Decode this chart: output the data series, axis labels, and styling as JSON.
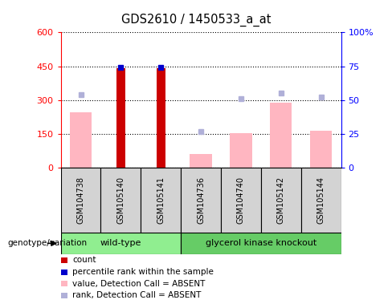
{
  "title": "GDS2610 / 1450533_a_at",
  "samples": [
    "GSM104738",
    "GSM105140",
    "GSM105141",
    "GSM104736",
    "GSM104740",
    "GSM105142",
    "GSM105144"
  ],
  "count_values": [
    null,
    440,
    440,
    null,
    null,
    null,
    null
  ],
  "count_color": "#cc0000",
  "percentile_rank_values": [
    null,
    74,
    74,
    null,
    null,
    null,
    null
  ],
  "percentile_rank_color": "#0000cc",
  "absent_value_bars": [
    245,
    null,
    null,
    60,
    155,
    290,
    165
  ],
  "absent_value_color": "#ffb6c1",
  "absent_rank_pct": [
    54,
    null,
    null,
    27,
    51,
    55,
    52
  ],
  "absent_rank_color": "#b0b0d8",
  "ylim_left": [
    0,
    600
  ],
  "ylim_right": [
    0,
    100
  ],
  "yticks_left": [
    0,
    150,
    300,
    450,
    600
  ],
  "yticks_right": [
    0,
    25,
    50,
    75,
    100
  ],
  "plot_facecolor": "#ffffff",
  "axes_facecolor": "#ffffff",
  "legend_items": [
    {
      "label": "count",
      "color": "#cc0000"
    },
    {
      "label": "percentile rank within the sample",
      "color": "#0000cc"
    },
    {
      "label": "value, Detection Call = ABSENT",
      "color": "#ffb6c1"
    },
    {
      "label": "rank, Detection Call = ABSENT",
      "color": "#b0b0d8"
    }
  ],
  "wt_color": "#90ee90",
  "gko_color": "#66cc66",
  "sample_box_color": "#d3d3d3",
  "wt_count": 3,
  "gko_count": 4
}
